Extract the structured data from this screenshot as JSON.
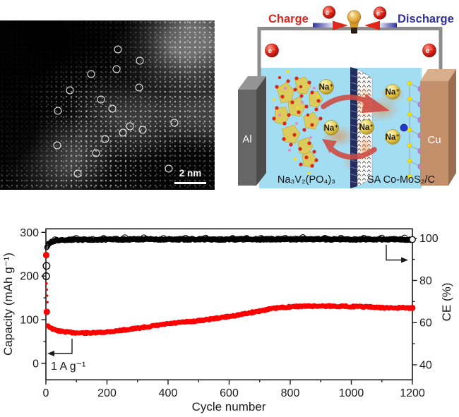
{
  "figure": {
    "background": "#ffffff"
  },
  "tem": {
    "scale_bar_label": "2 nm",
    "circle_radius": 4.5,
    "circles": [
      [
        167,
        41
      ],
      [
        198,
        57
      ],
      [
        165,
        69
      ],
      [
        129,
        76
      ],
      [
        197,
        95
      ],
      [
        99,
        99
      ],
      [
        143,
        112
      ],
      [
        159,
        125
      ],
      [
        82,
        128
      ],
      [
        247,
        145
      ],
      [
        184,
        150
      ],
      [
        202,
        155
      ],
      [
        174,
        159
      ],
      [
        149,
        168
      ],
      [
        81,
        177
      ],
      [
        136,
        188
      ],
      [
        239,
        210
      ],
      [
        110,
        217
      ]
    ]
  },
  "schematic": {
    "charge_label": "Charge",
    "discharge_label": "Discharge",
    "electron_label": "e⁻",
    "sodium_ion_label": "Na⁺",
    "anode_electrode_label": "Al",
    "cathode_electrode_label": "Cu",
    "anode_material_label": "Na₃V₂(PO₄)₃",
    "cathode_material_label": "SA Co-MoS₂/C",
    "colors": {
      "charge_red": "#e0241e",
      "discharge_blue": "#32329e",
      "electrolyte_blue": "#a3ddf2",
      "aluminum_gray": "#666666",
      "copper_tan": "#c4906c",
      "separator_navy": "#232d5e",
      "sodium_yellow": "#e6cf5a",
      "electron_red": "#e02718"
    }
  },
  "chart_data": {
    "type": "scatter",
    "title": "",
    "xlabel": "Cycle number",
    "ylabel_left": "Capacity (mAh g⁻¹)",
    "ylabel_right": "CE (%)",
    "annotation_rate": "1 A g⁻¹",
    "x_range": [
      0,
      1200
    ],
    "y_left_tick_values": [
      0,
      100,
      200,
      300
    ],
    "y_left_minor_ticks": [
      50,
      150,
      250
    ],
    "y_right_tick_values": [
      40,
      60,
      80,
      100
    ],
    "y_right_minor_ticks": [
      50,
      70,
      90
    ],
    "x_ticks": [
      0,
      200,
      400,
      600,
      800,
      1000,
      1200
    ],
    "x_minor_ticks": [
      100,
      300,
      500,
      700,
      900,
      1100
    ],
    "grid": false,
    "legend": "none",
    "series": [
      {
        "name": "Capacity",
        "yaxis": "left",
        "color": "#ff0000",
        "marker": "filled-circle",
        "head_points": [
          [
            1,
            248
          ],
          [
            2,
            183
          ],
          [
            3,
            169
          ],
          [
            4,
            155
          ],
          [
            5,
            140
          ],
          [
            3,
            118
          ]
        ],
        "head_radii": [
          4.6,
          1.7,
          1.7,
          1.7,
          1.7,
          4.6
        ],
        "trend": [
          [
            7,
            87
          ],
          [
            10,
            84.5
          ],
          [
            20,
            79.5
          ],
          [
            30,
            76.5
          ],
          [
            45,
            74
          ],
          [
            60,
            72.5
          ],
          [
            80,
            71
          ],
          [
            100,
            70
          ],
          [
            130,
            69.5
          ],
          [
            160,
            70
          ],
          [
            190,
            71.5
          ],
          [
            220,
            73.5
          ],
          [
            250,
            76
          ],
          [
            280,
            78.5
          ],
          [
            310,
            81.5
          ],
          [
            340,
            84.5
          ],
          [
            370,
            87.5
          ],
          [
            400,
            90.5
          ],
          [
            430,
            92.8
          ],
          [
            460,
            95
          ],
          [
            490,
            96.8
          ],
          [
            520,
            99.5
          ],
          [
            550,
            102.5
          ],
          [
            580,
            105.5
          ],
          [
            610,
            108.5
          ],
          [
            640,
            112
          ],
          [
            670,
            116
          ],
          [
            700,
            120
          ],
          [
            730,
            124
          ],
          [
            760,
            127
          ],
          [
            790,
            129
          ],
          [
            820,
            130.3
          ],
          [
            860,
            131
          ],
          [
            900,
            131.3
          ],
          [
            940,
            131
          ],
          [
            980,
            130.6
          ],
          [
            1020,
            130
          ],
          [
            1060,
            129.3
          ],
          [
            1085,
            128
          ],
          [
            1120,
            126.8
          ],
          [
            1160,
            127.2
          ],
          [
            1200,
            126.8
          ]
        ],
        "last_point": [
          1200,
          127
        ]
      },
      {
        "name": "Coulombic efficiency",
        "yaxis": "right",
        "color": "#000000",
        "marker": "open-circle",
        "head_points": [
          [
            1,
            82
          ],
          [
            2,
            86.9
          ]
        ],
        "head_radii": [
          4.8,
          4.8
        ],
        "trend": [
          [
            3,
            95.3
          ],
          [
            5,
            96.3
          ],
          [
            8,
            97.2
          ],
          [
            12,
            97.8
          ],
          [
            20,
            98.5
          ],
          [
            35,
            99
          ],
          [
            60,
            99.3
          ],
          [
            100,
            99.4
          ],
          [
            200,
            99.5
          ],
          [
            400,
            99.5
          ],
          [
            600,
            99.5
          ],
          [
            800,
            99.6
          ],
          [
            1000,
            99.5
          ],
          [
            1100,
            99.5
          ],
          [
            1200,
            99.4
          ]
        ],
        "last_point": [
          1200,
          99.4
        ]
      }
    ]
  }
}
